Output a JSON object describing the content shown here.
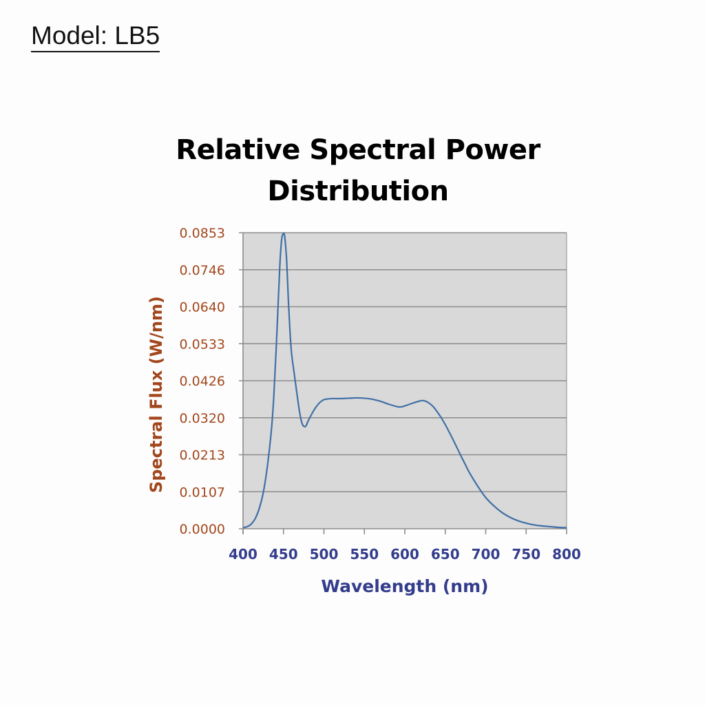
{
  "model_label": "Model: LB5",
  "colors": {
    "plot_background": "#d9d9d9",
    "gridline": "#8c8c8c",
    "line": "#3f6fa6",
    "y_text": "#a2471d",
    "x_text": "#343d8c"
  },
  "chart_data": {
    "type": "line",
    "title_lines": [
      "Relative Spectral Power",
      "Distribution"
    ],
    "xlabel": "Wavelength (nm)",
    "ylabel": "Spectral Flux (W/nm)",
    "xlim": [
      400,
      800
    ],
    "ylim": [
      0,
      0.0853
    ],
    "x_ticks": [
      "400",
      "450",
      "500",
      "550",
      "600",
      "650",
      "700",
      "750",
      "800"
    ],
    "y_ticks": [
      "0.0000",
      "0.0107",
      "0.0213",
      "0.0320",
      "0.0426",
      "0.0533",
      "0.0640",
      "0.0746",
      "0.0853"
    ],
    "grid": true,
    "legend": "none",
    "series": [
      {
        "x": [
          400,
          405,
          410,
          415,
          420,
          425,
          430,
          435,
          438,
          441,
          444,
          446,
          448,
          450,
          451,
          452,
          454,
          456,
          458,
          460,
          463,
          466,
          470,
          473,
          476,
          478,
          480,
          483,
          486,
          490,
          495,
          500,
          505,
          510,
          520,
          530,
          540,
          550,
          560,
          570,
          580,
          590,
          595,
          600,
          610,
          620,
          625,
          630,
          635,
          640,
          645,
          650,
          655,
          660,
          665,
          670,
          675,
          680,
          690,
          700,
          710,
          720,
          730,
          740,
          750,
          760,
          770,
          780,
          790,
          800
        ],
        "y": [
          0.0003,
          0.0006,
          0.0013,
          0.0029,
          0.0058,
          0.0104,
          0.0178,
          0.0283,
          0.038,
          0.052,
          0.068,
          0.078,
          0.0838,
          0.0851,
          0.0848,
          0.0832,
          0.077,
          0.066,
          0.057,
          0.0505,
          0.0452,
          0.04,
          0.0335,
          0.0303,
          0.0294,
          0.0297,
          0.0308,
          0.0322,
          0.0335,
          0.035,
          0.0364,
          0.0372,
          0.0374,
          0.0375,
          0.0375,
          0.0376,
          0.0377,
          0.0376,
          0.0373,
          0.0367,
          0.0359,
          0.0352,
          0.0351,
          0.0354,
          0.0362,
          0.0369,
          0.0368,
          0.0362,
          0.0352,
          0.0337,
          0.032,
          0.03,
          0.0278,
          0.0255,
          0.0231,
          0.0207,
          0.0184,
          0.0161,
          0.0123,
          0.009,
          0.0066,
          0.0047,
          0.0033,
          0.0023,
          0.0016,
          0.0011,
          0.0008,
          0.0006,
          0.0004,
          0.0003
        ]
      }
    ]
  }
}
